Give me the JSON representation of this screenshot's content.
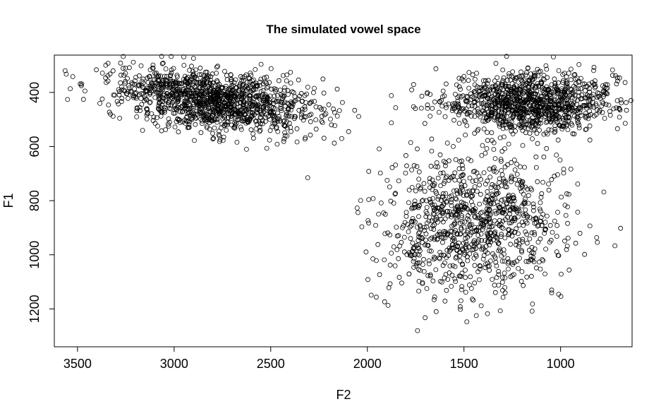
{
  "chart_data": {
    "type": "scatter",
    "title": "The simulated vowel space",
    "xlabel": "F2",
    "ylabel": "F1",
    "xlim": [
      3620,
      630
    ],
    "ylim": [
      1340,
      262
    ],
    "x_reversed": true,
    "y_reversed": true,
    "x_ticks": [
      3500,
      3000,
      2500,
      2000,
      1500,
      1000
    ],
    "y_ticks": [
      400,
      600,
      800,
      1000,
      1200
    ],
    "grid": false,
    "legend": "none",
    "marker": "open-circle",
    "marker_color": "#000000",
    "clusters": [
      {
        "f2_mean": 2800,
        "f2_sd": 260,
        "f1_mean": 430,
        "f1_sd": 55,
        "f2_f1_slope": -0.08,
        "count": 1300
      },
      {
        "f2_mean": 1150,
        "f2_sd": 230,
        "f1_mean": 435,
        "f1_sd": 55,
        "f2_f1_slope": 0,
        "count": 1100
      },
      {
        "f2_mean": 1450,
        "f2_sd": 230,
        "f1_mean": 890,
        "f1_sd": 130,
        "f2_f1_slope": 0,
        "count": 1000
      }
    ]
  }
}
